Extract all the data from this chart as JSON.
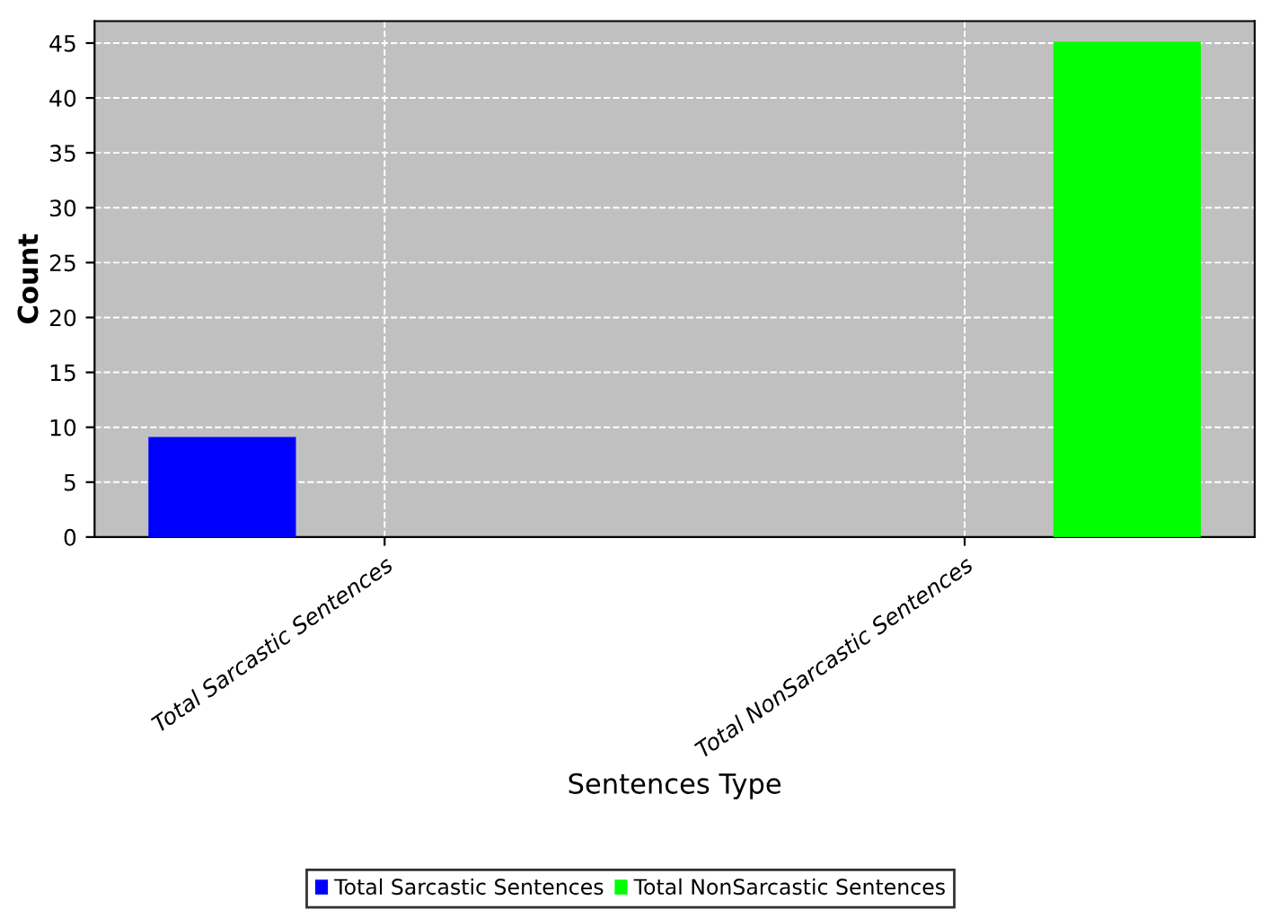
{
  "chart_data": {
    "type": "bar",
    "xlabel": "Sentences Type",
    "ylabel": "Count",
    "categories": [
      "Total Sarcastic Sentences",
      "Total NonSarcastic Sentences"
    ],
    "series": [
      {
        "name": "Total Sarcastic Sentences",
        "color": "#0000ff",
        "values": [
          9,
          null
        ]
      },
      {
        "name": "Total NonSarcastic Sentences",
        "color": "#00ff00",
        "values": [
          null,
          45
        ]
      }
    ],
    "ylim": [
      0,
      47
    ],
    "yticks": [
      0,
      5,
      10,
      15,
      20,
      25,
      30,
      35,
      40,
      45
    ],
    "grid": true,
    "legend": "bottom"
  }
}
